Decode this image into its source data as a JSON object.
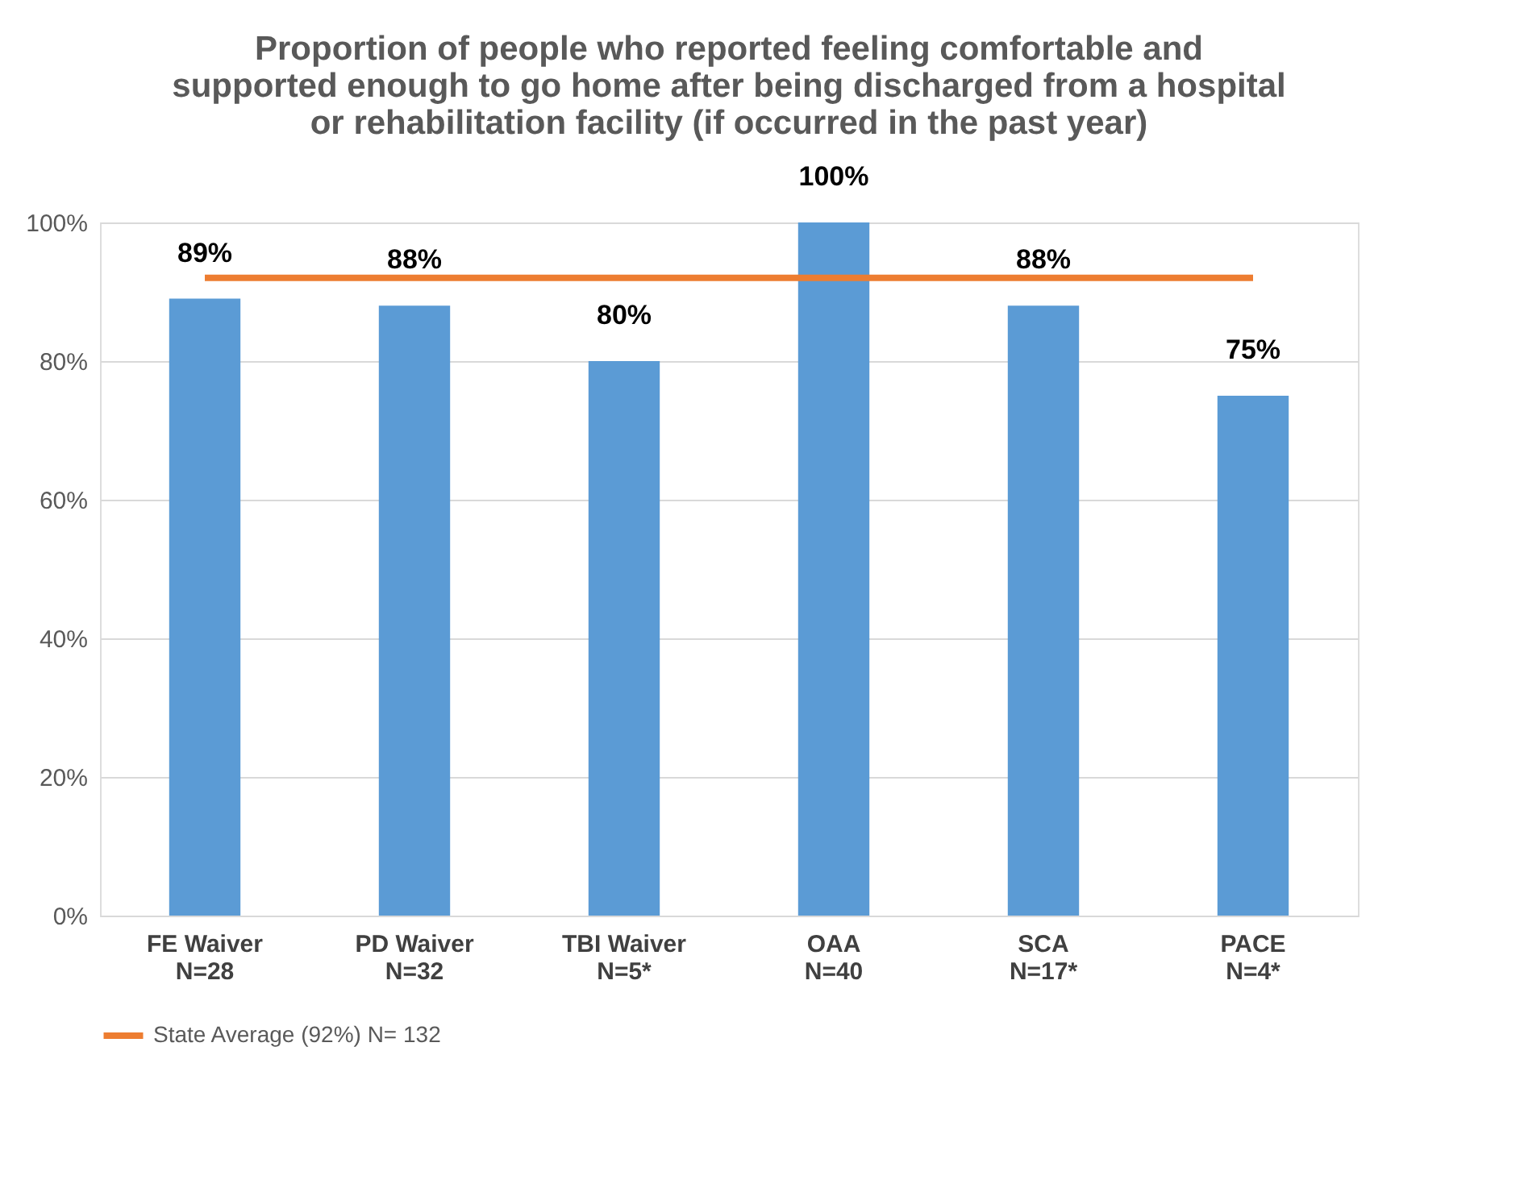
{
  "chart_data": {
    "type": "bar",
    "title": "Proportion of people who reported feeling comfortable and supported enough to go home after being discharged from a hospital or rehabilitation facility (if occurred in the past year)",
    "categories": [
      "FE Waiver\nN=28",
      "PD Waiver\nN=32",
      "TBI Waiver\nN=5*",
      "OAA\nN=40",
      "SCA\nN=17*",
      "PACE\nN=4*"
    ],
    "series": [
      {
        "color": "#5b9bd5",
        "values": [
          89,
          88,
          80,
          100,
          88,
          75
        ],
        "value_labels": [
          "89%",
          "88%",
          "80%",
          "100%",
          "88%",
          "75%"
        ]
      },
      {
        "type": "line",
        "name": "State Average (92%) N= 132",
        "color": "#ed7d31",
        "values": [
          92,
          92,
          92,
          92,
          92,
          92
        ]
      }
    ],
    "ylim": [
      0,
      100
    ],
    "yticks": [
      {
        "value": 0,
        "label": "0%"
      },
      {
        "value": 20,
        "label": "20%"
      },
      {
        "value": 40,
        "label": "40%"
      },
      {
        "value": 60,
        "label": "60%"
      },
      {
        "value": 80,
        "label": "80%"
      },
      {
        "value": 100,
        "label": "100%"
      }
    ],
    "grid": "y",
    "legend": "bottom",
    "marker": "none",
    "line_style": "solid"
  }
}
